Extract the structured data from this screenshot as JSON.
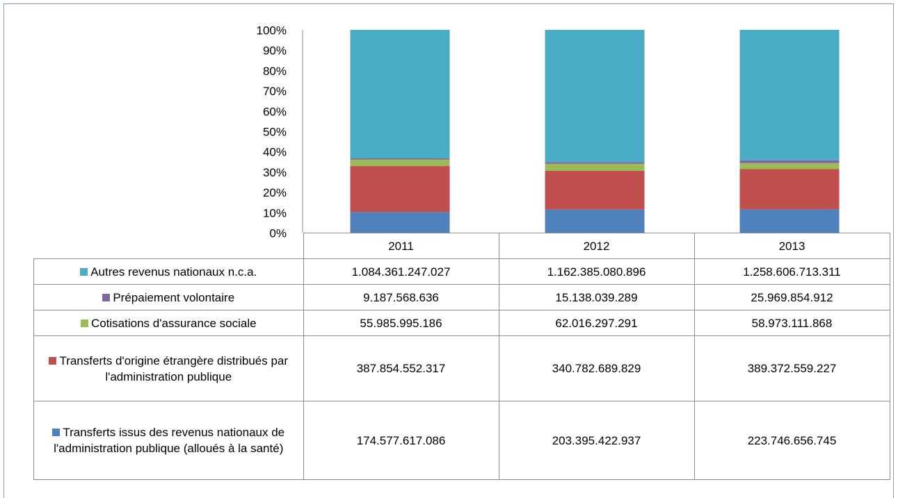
{
  "chart_data": {
    "type": "stacked_bar_100",
    "categories": [
      "2011",
      "2012",
      "2013"
    ],
    "ylim": [
      0,
      100
    ],
    "yticks": [
      {
        "value": 0,
        "label": "0%"
      },
      {
        "value": 10,
        "label": "10%"
      },
      {
        "value": 20,
        "label": "20%"
      },
      {
        "value": 30,
        "label": "30%"
      },
      {
        "value": 40,
        "label": "40%"
      },
      {
        "value": 50,
        "label": "50%"
      },
      {
        "value": 60,
        "label": "60%"
      },
      {
        "value": 70,
        "label": "70%"
      },
      {
        "value": 80,
        "label": "80%"
      },
      {
        "value": 90,
        "label": "90%"
      },
      {
        "value": 100,
        "label": "100%"
      }
    ],
    "series": [
      {
        "name": "Autres revenus nationaux n.c.a.",
        "color": "#4bacc6",
        "values": [
          1084361247027,
          1162385080896,
          1258606713311
        ],
        "value_labels": [
          "1.084.361.247.027",
          "1.162.385.080.896",
          "1.258.606.713.311"
        ]
      },
      {
        "name": "Prépaiement volontaire",
        "color": "#8064a2",
        "values": [
          9187568636,
          15138039289,
          25969854912
        ],
        "value_labels": [
          "9.187.568.636",
          "15.138.039.289",
          "25.969.854.912"
        ]
      },
      {
        "name": "Cotisations d'assurance sociale",
        "color": "#9bbb59",
        "values": [
          55985995186,
          62016297291,
          58973111868
        ],
        "value_labels": [
          "55.985.995.186",
          "62.016.297.291",
          "58.973.111.868"
        ]
      },
      {
        "name": "Transferts d'origine étrangère distribués par l'administration publique",
        "color": "#c0504d",
        "values": [
          387854552317,
          340782689829,
          389372559227
        ],
        "value_labels": [
          "387.854.552.317",
          "340.782.689.829",
          "389.372.559.227"
        ]
      },
      {
        "name": "Transferts issus des revenus nationaux de l'administration publique (alloués à la santé)",
        "color": "#4f81bd",
        "values": [
          174577617086,
          203395422937,
          223746656745
        ],
        "value_labels": [
          "174.577.617.086",
          "203.395.422.937",
          "223.746.656.745"
        ]
      }
    ]
  }
}
